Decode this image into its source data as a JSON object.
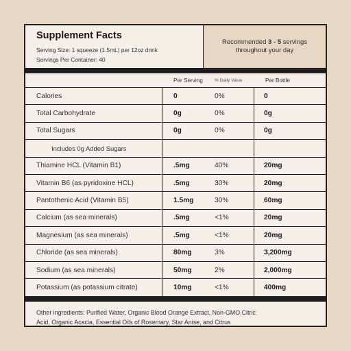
{
  "panel": {
    "title": "Supplement Facts",
    "serving_size": "Serving Size: 1 squeeze (1.5mL) per 12oz drink",
    "servings_per_container": "Servings Per Container: 40",
    "recommend_line1_pre": "Recommended ",
    "recommend_line1_bold": "3 - 5",
    "recommend_line1_post": " servings",
    "recommend_line2": "throughout your day"
  },
  "table": {
    "headers": {
      "per_serving": "Per Serving",
      "daily_value": "% Daily Value",
      "per_bottle": "Per Bottle"
    },
    "rows": [
      {
        "name": "Calories",
        "serving": "0",
        "dv": "0%",
        "bottle": "0",
        "indent": false
      },
      {
        "name": "Total Carbohydrate",
        "serving": "0g",
        "dv": "0%",
        "bottle": "0g",
        "indent": false
      },
      {
        "name": "Total Sugars",
        "serving": "0g",
        "dv": "0%",
        "bottle": "0g",
        "indent": false
      },
      {
        "name": "Includes 0g Added Sugars",
        "serving": "",
        "dv": "",
        "bottle": "",
        "indent": true
      },
      {
        "name": "Thiamine HCL (Vitamin B1)",
        "serving": ".5mg",
        "dv": "40%",
        "bottle": "20mg",
        "indent": false
      },
      {
        "name": "Vitamin B6 (as pyridoxine HCL)",
        "serving": ".5mg",
        "dv": "30%",
        "bottle": "20mg",
        "indent": false
      },
      {
        "name": "Pantothenic Acid (Vitamin B5)",
        "serving": "1.5mg",
        "dv": "30%",
        "bottle": "60mg",
        "indent": false
      },
      {
        "name": "Calcium (as sea minerals)",
        "serving": ".5mg",
        "dv": "<1%",
        "bottle": "20mg",
        "indent": false
      },
      {
        "name": "Magnesium (as sea minerals)",
        "serving": ".5mg",
        "dv": "<1%",
        "bottle": "20mg",
        "indent": false
      },
      {
        "name": "Chloride (as sea minerals)",
        "serving": "80mg",
        "dv": "3%",
        "bottle": "3,200mg",
        "indent": false
      },
      {
        "name": "Sodium (as sea minerals)",
        "serving": "50mg",
        "dv": "2%",
        "bottle": "2,000mg",
        "indent": false
      },
      {
        "name": "Potassium (as potassium citrate)",
        "serving": "10mg",
        "dv": "<1%",
        "bottle": "400mg",
        "indent": false
      }
    ]
  },
  "footer": {
    "line1": "Other ingredients: Purified Water, Organic Blood Orange Extract, Non-GMO Citric",
    "line2": "Acid, Organic Acacia, Essential Oils of Rosemary, Star Anise, and Citrus"
  },
  "colors": {
    "background": "#e8d6c3",
    "panel": "#f4efe8",
    "rule": "#1f1f1f"
  }
}
